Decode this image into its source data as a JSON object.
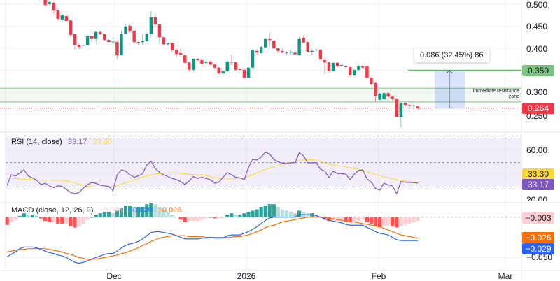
{
  "axis": {
    "price_labels": [
      "0.500",
      "0.450",
      "0.400",
      "0.300",
      "0.250"
    ],
    "rsi_labels": [
      "60.00",
      "20.00"
    ],
    "macd_labels": [
      "−0.050"
    ],
    "time_labels": [
      "Dec",
      "2026",
      "Feb",
      "Mar"
    ]
  },
  "badges": {
    "target": "0.350",
    "last_price": "0.264",
    "rsi_ma": "33.30",
    "rsi": "33.17",
    "macd_hist": "−0.003",
    "macd_signal": "−0.026",
    "macd_line": "−0.029"
  },
  "annotations": {
    "measure_tooltip": "0.086 (32.45%) 86",
    "zone_label_line1": "Immediate resistance",
    "zone_label_line2": "zone"
  },
  "rsi_legend": {
    "title": "RSI (14, close)",
    "value": "33.17",
    "ma_value": "33.30"
  },
  "macd_legend": {
    "title": "MACD (close, 12, 26, 9)",
    "hist": "−0.003",
    "macd": "−0.029",
    "signal": "−0.026"
  },
  "colors": {
    "up": "#089981",
    "down": "#f23645",
    "rsi": "#7e57c2",
    "rsi_ma": "#fdd835",
    "macd": "#2962ff",
    "signal": "#ff6d00",
    "target": "#66bb6a",
    "zone": "#a5d6a7"
  },
  "chart_data": {
    "type": "candlestick",
    "price": {
      "ylim": [
        0.221,
        0.51
      ],
      "ticks": [
        0.5,
        0.45,
        0.4,
        0.35,
        0.3,
        0.25
      ],
      "last": 0.264,
      "target_level": 0.35,
      "resistance_zone": [
        0.278,
        0.309
      ],
      "measure": {
        "from": 0.264,
        "to": 0.35,
        "change": 0.086,
        "percent": 32.45,
        "bars": 86
      },
      "ohlc": [
        [
          0.51,
          0.512,
          0.496,
          0.498
        ],
        [
          0.5,
          0.507,
          0.498,
          0.505
        ],
        [
          0.503,
          0.506,
          0.478,
          0.486
        ],
        [
          0.486,
          0.49,
          0.464,
          0.467
        ],
        [
          0.465,
          0.478,
          0.46,
          0.475
        ],
        [
          0.473,
          0.476,
          0.458,
          0.462
        ],
        [
          0.463,
          0.466,
          0.425,
          0.43
        ],
        [
          0.432,
          0.434,
          0.397,
          0.408
        ],
        [
          0.408,
          0.41,
          0.398,
          0.403
        ],
        [
          0.406,
          0.409,
          0.404,
          0.408
        ],
        [
          0.408,
          0.43,
          0.405,
          0.427
        ],
        [
          0.427,
          0.43,
          0.413,
          0.421
        ],
        [
          0.421,
          0.44,
          0.413,
          0.437
        ],
        [
          0.437,
          0.44,
          0.43,
          0.432
        ],
        [
          0.432,
          0.434,
          0.416,
          0.419
        ],
        [
          0.419,
          0.421,
          0.413,
          0.414
        ],
        [
          0.414,
          0.425,
          0.412,
          0.415
        ],
        [
          0.414,
          0.416,
          0.375,
          0.384
        ],
        [
          0.384,
          0.44,
          0.383,
          0.433
        ],
        [
          0.433,
          0.454,
          0.432,
          0.449
        ],
        [
          0.451,
          0.455,
          0.436,
          0.438
        ],
        [
          0.44,
          0.442,
          0.41,
          0.414
        ],
        [
          0.414,
          0.418,
          0.408,
          0.411
        ],
        [
          0.414,
          0.433,
          0.408,
          0.417
        ],
        [
          0.416,
          0.436,
          0.414,
          0.432
        ],
        [
          0.432,
          0.484,
          0.425,
          0.47
        ],
        [
          0.47,
          0.477,
          0.452,
          0.454
        ],
        [
          0.454,
          0.456,
          0.41,
          0.425
        ],
        [
          0.425,
          0.427,
          0.405,
          0.409
        ],
        [
          0.409,
          0.413,
          0.405,
          0.411
        ],
        [
          0.411,
          0.413,
          0.392,
          0.395
        ],
        [
          0.397,
          0.4,
          0.379,
          0.387
        ],
        [
          0.389,
          0.4,
          0.38,
          0.386
        ],
        [
          0.384,
          0.386,
          0.365,
          0.367
        ],
        [
          0.368,
          0.37,
          0.348,
          0.351
        ],
        [
          0.351,
          0.378,
          0.348,
          0.376
        ],
        [
          0.376,
          0.378,
          0.371,
          0.373
        ],
        [
          0.373,
          0.375,
          0.362,
          0.365
        ],
        [
          0.367,
          0.375,
          0.364,
          0.37
        ],
        [
          0.37,
          0.372,
          0.36,
          0.363
        ],
        [
          0.363,
          0.366,
          0.354,
          0.356
        ],
        [
          0.356,
          0.358,
          0.341,
          0.343
        ],
        [
          0.343,
          0.35,
          0.34,
          0.348
        ],
        [
          0.348,
          0.372,
          0.346,
          0.37
        ],
        [
          0.369,
          0.385,
          0.36,
          0.368
        ],
        [
          0.368,
          0.37,
          0.349,
          0.351
        ],
        [
          0.354,
          0.356,
          0.348,
          0.351
        ],
        [
          0.351,
          0.353,
          0.33,
          0.333
        ],
        [
          0.333,
          0.358,
          0.331,
          0.356
        ],
        [
          0.356,
          0.398,
          0.354,
          0.395
        ],
        [
          0.394,
          0.398,
          0.385,
          0.39
        ],
        [
          0.389,
          0.405,
          0.387,
          0.403
        ],
        [
          0.402,
          0.424,
          0.4,
          0.421
        ],
        [
          0.421,
          0.438,
          0.405,
          0.419
        ],
        [
          0.417,
          0.421,
          0.398,
          0.4
        ],
        [
          0.4,
          0.402,
          0.389,
          0.394
        ],
        [
          0.394,
          0.4,
          0.389,
          0.39
        ],
        [
          0.39,
          0.392,
          0.386,
          0.389
        ],
        [
          0.39,
          0.395,
          0.387,
          0.392
        ],
        [
          0.39,
          0.401,
          0.384,
          0.386
        ],
        [
          0.384,
          0.426,
          0.383,
          0.421
        ],
        [
          0.424,
          0.43,
          0.411,
          0.413
        ],
        [
          0.414,
          0.416,
          0.39,
          0.392
        ],
        [
          0.392,
          0.398,
          0.385,
          0.394
        ],
        [
          0.395,
          0.4,
          0.394,
          0.397
        ],
        [
          0.397,
          0.399,
          0.373,
          0.375
        ],
        [
          0.373,
          0.375,
          0.341,
          0.368
        ],
        [
          0.368,
          0.37,
          0.345,
          0.349
        ],
        [
          0.349,
          0.368,
          0.346,
          0.367
        ],
        [
          0.367,
          0.37,
          0.357,
          0.359
        ],
        [
          0.362,
          0.366,
          0.358,
          0.362
        ],
        [
          0.359,
          0.361,
          0.355,
          0.357
        ],
        [
          0.357,
          0.359,
          0.335,
          0.338
        ],
        [
          0.338,
          0.352,
          0.336,
          0.351
        ],
        [
          0.351,
          0.362,
          0.349,
          0.359
        ],
        [
          0.359,
          0.362,
          0.354,
          0.356
        ],
        [
          0.359,
          0.361,
          0.331,
          0.333
        ],
        [
          0.333,
          0.335,
          0.316,
          0.319
        ],
        [
          0.321,
          0.323,
          0.278,
          0.292
        ],
        [
          0.283,
          0.3,
          0.282,
          0.297
        ],
        [
          0.284,
          0.3,
          0.28,
          0.298
        ],
        [
          0.298,
          0.302,
          0.285,
          0.29
        ],
        [
          0.29,
          0.293,
          0.281,
          0.286
        ],
        [
          0.284,
          0.288,
          0.244,
          0.244
        ],
        [
          0.244,
          0.278,
          0.221,
          0.275
        ],
        [
          0.276,
          0.279,
          0.268,
          0.271
        ],
        [
          0.271,
          0.273,
          0.266,
          0.268
        ],
        [
          0.269,
          0.274,
          0.259,
          0.27
        ],
        [
          0.268,
          0.27,
          0.26,
          0.264
        ]
      ]
    },
    "rsi": {
      "ylim": [
        20,
        70
      ],
      "levels": [
        70,
        50,
        30
      ],
      "ticks": [
        60,
        20
      ],
      "values": [
        31.4,
        40,
        39,
        41.5,
        44,
        39,
        37.5,
        35.5,
        32,
        33,
        31,
        29.5,
        31,
        30.5,
        28,
        25.5,
        24.6,
        25.5,
        29,
        32,
        33.7,
        33,
        31.5,
        30.9,
        30.5,
        27,
        40,
        44,
        43,
        40,
        38,
        39,
        41,
        48,
        51,
        45,
        42,
        40,
        38.5,
        37,
        36,
        34.5,
        32,
        35,
        38.5,
        37,
        38,
        37,
        36,
        33,
        34,
        38,
        41.7,
        40,
        38,
        37.5,
        36,
        46,
        52.6,
        52,
        54.5,
        58.3,
        57,
        52.5,
        50.5,
        49.5,
        49,
        49.7,
        50,
        58,
        55.5,
        49.7,
        49.7,
        50,
        44.5,
        43,
        37.7,
        43,
        41,
        41,
        40.5,
        36,
        40.5,
        43.5,
        44,
        36.6,
        34,
        29,
        27.4,
        33,
        31.7,
        30.9,
        24.6,
        34.5,
        34,
        33.8,
        33.6,
        33.17
      ],
      "ma": [
        37,
        37,
        36.8,
        36.6,
        36.4,
        36.2,
        36,
        35.8,
        35.6,
        35.5,
        35.5,
        35.5,
        35.5,
        35.5,
        35,
        34.3,
        33.3,
        32.3,
        31.3,
        30.6,
        30.2,
        30,
        30,
        30,
        30,
        30,
        31,
        32.2,
        33.4,
        34.5,
        35.6,
        36.8,
        38,
        39,
        40,
        40.6,
        41,
        41.3,
        41.6,
        41.7,
        41.5,
        41.2,
        40.8,
        40.4,
        40.1,
        40,
        40,
        39.5,
        38.5,
        37.7,
        37.2,
        36.8,
        36.6,
        36.6,
        36.7,
        36.8,
        37,
        38.5,
        40,
        41.5,
        43,
        44.3,
        45.5,
        46.6,
        47.6,
        48.5,
        49.3,
        50,
        50.5,
        51.5,
        52.3,
        52.5,
        52.3,
        52,
        51,
        49.8,
        48.8,
        48,
        47.4,
        47,
        46.5,
        45.8,
        45.2,
        44.5,
        43.6,
        42.5,
        41.5,
        40.4,
        39.4,
        38.5,
        37.6,
        36.8,
        36,
        35.5,
        35,
        34.5,
        34,
        33.3
      ]
    },
    "macd": {
      "ylim": [
        -0.066,
        0.017
      ],
      "ticks": [
        -0.05
      ],
      "macd": [
        -0.049,
        -0.046,
        -0.043,
        -0.039,
        -0.037,
        -0.037,
        -0.037,
        -0.038,
        -0.04,
        -0.042,
        -0.044,
        -0.045,
        -0.047,
        -0.048,
        -0.05,
        -0.053,
        -0.056,
        -0.057,
        -0.056,
        -0.054,
        -0.052,
        -0.05,
        -0.048,
        -0.046,
        -0.045,
        -0.045,
        -0.042,
        -0.038,
        -0.035,
        -0.033,
        -0.032,
        -0.03,
        -0.027,
        -0.023,
        -0.019,
        -0.018,
        -0.018,
        -0.019,
        -0.02,
        -0.021,
        -0.023,
        -0.025,
        -0.027,
        -0.027,
        -0.027,
        -0.027,
        -0.026,
        -0.026,
        -0.025,
        -0.026,
        -0.026,
        -0.026,
        -0.023,
        -0.022,
        -0.022,
        -0.022,
        -0.02,
        -0.018,
        -0.015,
        -0.012,
        -0.008,
        -0.004,
        -0.001,
        0.0,
        0.0,
        0.0,
        0.0,
        0.0,
        0.0,
        0.003,
        0.003,
        0.003,
        0.003,
        0.002,
        0.0,
        -0.002,
        -0.004,
        -0.005,
        -0.006,
        -0.007,
        -0.009,
        -0.01,
        -0.01,
        -0.01,
        -0.01,
        -0.013,
        -0.015,
        -0.018,
        -0.02,
        -0.021,
        -0.022,
        -0.025,
        -0.028,
        -0.029,
        -0.029,
        -0.029,
        -0.029,
        -0.029
      ],
      "signal": [
        -0.043,
        -0.042,
        -0.041,
        -0.04,
        -0.04,
        -0.039,
        -0.039,
        -0.039,
        -0.039,
        -0.039,
        -0.04,
        -0.041,
        -0.042,
        -0.043,
        -0.045,
        -0.046,
        -0.048,
        -0.05,
        -0.051,
        -0.052,
        -0.052,
        -0.052,
        -0.051,
        -0.05,
        -0.049,
        -0.048,
        -0.047,
        -0.045,
        -0.044,
        -0.042,
        -0.04,
        -0.038,
        -0.035,
        -0.033,
        -0.03,
        -0.028,
        -0.026,
        -0.025,
        -0.024,
        -0.023,
        -0.023,
        -0.023,
        -0.023,
        -0.024,
        -0.024,
        -0.024,
        -0.024,
        -0.025,
        -0.025,
        -0.025,
        -0.025,
        -0.025,
        -0.025,
        -0.025,
        -0.024,
        -0.024,
        -0.023,
        -0.022,
        -0.02,
        -0.018,
        -0.016,
        -0.013,
        -0.011,
        -0.01,
        -0.008,
        -0.006,
        -0.005,
        -0.004,
        -0.003,
        -0.002,
        -0.001,
        0.0,
        0.0,
        0.0,
        0.0,
        0.0,
        -0.001,
        -0.002,
        -0.003,
        -0.004,
        -0.005,
        -0.006,
        -0.006,
        -0.007,
        -0.008,
        -0.009,
        -0.01,
        -0.011,
        -0.012,
        -0.014,
        -0.016,
        -0.018,
        -0.02,
        -0.022,
        -0.023,
        -0.024,
        -0.025,
        -0.026
      ]
    }
  }
}
